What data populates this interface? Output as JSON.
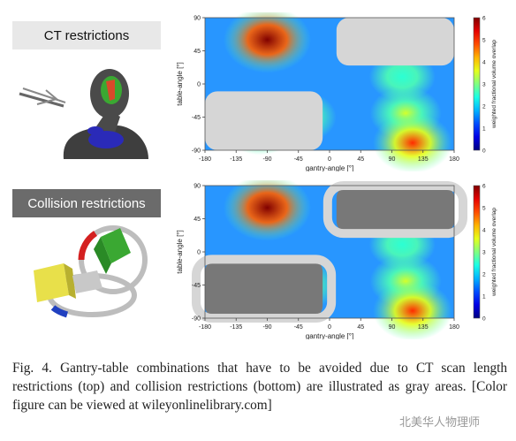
{
  "panels": {
    "top_label": "CT restrictions",
    "bottom_label": "Collision restrictions"
  },
  "caption": {
    "prefix": "Fig. 4.",
    "text": "Gantry-table combinations that have to be avoided due to CT scan length restrictions (top) and collision restrictions (bottom) are illustrated as gray areas. [Color figure can be viewed at wileyonlinelibrary.com]"
  },
  "watermark": "北美华人物理师",
  "colors": {
    "restricted_light": "#d6d6d6",
    "restricted_dark": "#787878",
    "low": "#1f4fd6"
  },
  "chart_data": [
    {
      "type": "heatmap",
      "xlabel": "gantry-angle [°]",
      "ylabel": "table-angle [°]",
      "colorbar_label": "weighted fractional volume overlap",
      "xlim": [
        -180,
        180
      ],
      "ylim": [
        -90,
        90
      ],
      "x_ticks": [
        "-180",
        "-135",
        "-90",
        "-45",
        "0",
        "45",
        "90",
        "135",
        "180"
      ],
      "y_ticks": [
        "-90",
        "-45",
        "0",
        "45",
        "90"
      ],
      "colorbar_range": [
        0,
        6
      ],
      "colorbar_ticks": [
        "0",
        "1",
        "2",
        "3",
        "4",
        "5",
        "6"
      ],
      "hotspots": [
        {
          "gantry": -90,
          "table": 60,
          "value": 6.5
        },
        {
          "gantry": -100,
          "table": -60,
          "value": 3.5
        },
        {
          "gantry": -40,
          "table": -45,
          "value": 3
        },
        {
          "gantry": 110,
          "table": -40,
          "value": 3.5
        },
        {
          "gantry": 120,
          "table": -80,
          "value": 5
        },
        {
          "gantry": 105,
          "table": 10,
          "value": 2.5
        }
      ],
      "restricted_regions": [
        {
          "gantry_range": [
            10,
            180
          ],
          "table_range": [
            25,
            90
          ]
        },
        {
          "gantry_range": [
            -180,
            -10
          ],
          "table_range": [
            -90,
            -10
          ]
        }
      ]
    },
    {
      "type": "heatmap",
      "xlabel": "gantry-angle [°]",
      "ylabel": "table-angle [°]",
      "colorbar_label": "weighted fractional volume overlap",
      "xlim": [
        -180,
        180
      ],
      "ylim": [
        -90,
        90
      ],
      "x_ticks": [
        "-180",
        "-135",
        "-90",
        "-45",
        "0",
        "45",
        "90",
        "135",
        "180"
      ],
      "y_ticks": [
        "-90",
        "-45",
        "0",
        "45",
        "90"
      ],
      "colorbar_range": [
        0,
        6
      ],
      "colorbar_ticks": [
        "0",
        "1",
        "2",
        "3",
        "4",
        "5",
        "6"
      ],
      "hotspots": [
        {
          "gantry": -90,
          "table": 60,
          "value": 6.5
        },
        {
          "gantry": -100,
          "table": -60,
          "value": 3.5
        },
        {
          "gantry": -40,
          "table": -45,
          "value": 3
        },
        {
          "gantry": 110,
          "table": -40,
          "value": 3.5
        },
        {
          "gantry": 120,
          "table": -80,
          "value": 5
        },
        {
          "gantry": 105,
          "table": 10,
          "value": 2.5
        }
      ],
      "restricted_regions": [
        {
          "gantry_range": [
            10,
            180
          ],
          "table_range": [
            25,
            90
          ]
        },
        {
          "gantry_range": [
            -180,
            -10
          ],
          "table_range": [
            -90,
            -10
          ]
        }
      ]
    }
  ]
}
